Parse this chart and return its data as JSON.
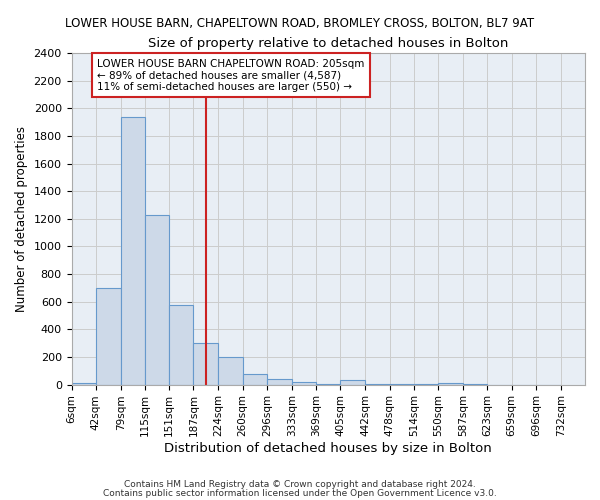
{
  "title1": "LOWER HOUSE BARN, CHAPELTOWN ROAD, BROMLEY CROSS, BOLTON, BL7 9AT",
  "title2": "Size of property relative to detached houses in Bolton",
  "xlabel": "Distribution of detached houses by size in Bolton",
  "ylabel": "Number of detached properties",
  "bin_edges": [
    6,
    42,
    79,
    115,
    151,
    187,
    224,
    260,
    296,
    333,
    369,
    405,
    442,
    478,
    514,
    550,
    587,
    623,
    659,
    696,
    732
  ],
  "bar_heights": [
    10,
    700,
    1940,
    1230,
    575,
    300,
    200,
    80,
    40,
    20,
    5,
    30,
    5,
    5,
    5,
    10,
    5,
    0,
    0,
    0
  ],
  "bar_color": "#cdd9e8",
  "bar_edge_color": "#6699cc",
  "vline_x": 205,
  "vline_color": "#cc2222",
  "ylim": [
    0,
    2400
  ],
  "yticks": [
    0,
    200,
    400,
    600,
    800,
    1000,
    1200,
    1400,
    1600,
    1800,
    2000,
    2200,
    2400
  ],
  "annotation_line1": "LOWER HOUSE BARN CHAPELTOWN ROAD: 205sqm",
  "annotation_line2": "← 89% of detached houses are smaller (4,587)",
  "annotation_line3": "11% of semi-detached houses are larger (550) →",
  "annotation_box_color": "#ffffff",
  "annotation_box_edge": "#cc2222",
  "footer1": "Contains HM Land Registry data © Crown copyright and database right 2024.",
  "footer2": "Contains public sector information licensed under the Open Government Licence v3.0.",
  "bg_color": "#ffffff",
  "plot_bg_color": "#e8eef5"
}
